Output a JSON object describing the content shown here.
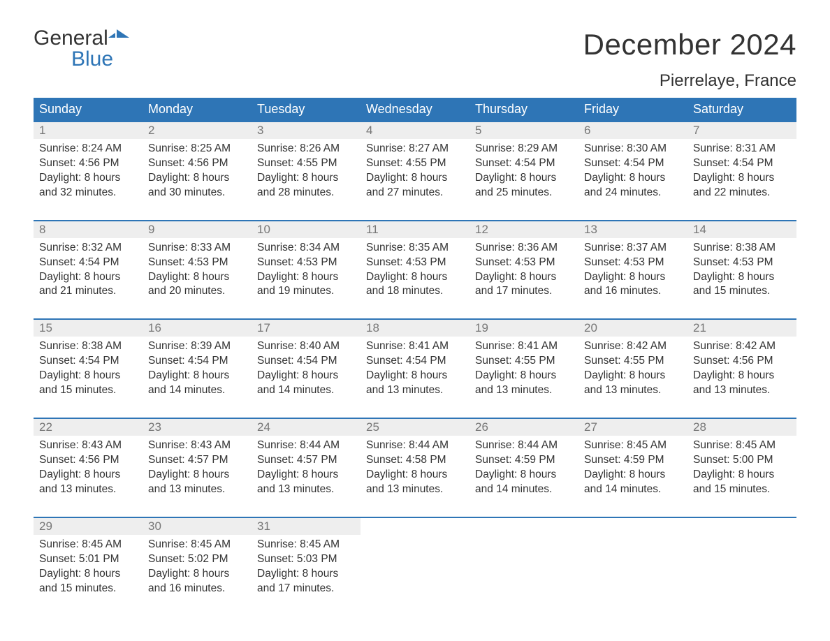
{
  "logo": {
    "line1": "General",
    "line2": "Blue"
  },
  "title": "December 2024",
  "location": "Pierrelaye, France",
  "colors": {
    "header_bg": "#2e75b6",
    "header_text": "#ffffff",
    "daynum_bg": "#eeeeee",
    "daynum_text": "#777777",
    "border": "#2e75b6",
    "body_text": "#333333",
    "page_bg": "#ffffff"
  },
  "fonts": {
    "title_size_pt": 32,
    "location_size_pt": 18,
    "weekday_size_pt": 14,
    "daynum_size_pt": 13,
    "detail_size_pt": 12,
    "family": "Arial"
  },
  "layout": {
    "columns": 7,
    "weeks": 5
  },
  "weekdays": [
    "Sunday",
    "Monday",
    "Tuesday",
    "Wednesday",
    "Thursday",
    "Friday",
    "Saturday"
  ],
  "labels": {
    "sunrise": "Sunrise:",
    "sunset": "Sunset:",
    "daylight_prefix": "Daylight:"
  },
  "days": [
    {
      "n": 1,
      "sunrise": "8:24 AM",
      "sunset": "4:56 PM",
      "dl": "8 hours and 32 minutes."
    },
    {
      "n": 2,
      "sunrise": "8:25 AM",
      "sunset": "4:56 PM",
      "dl": "8 hours and 30 minutes."
    },
    {
      "n": 3,
      "sunrise": "8:26 AM",
      "sunset": "4:55 PM",
      "dl": "8 hours and 28 minutes."
    },
    {
      "n": 4,
      "sunrise": "8:27 AM",
      "sunset": "4:55 PM",
      "dl": "8 hours and 27 minutes."
    },
    {
      "n": 5,
      "sunrise": "8:29 AM",
      "sunset": "4:54 PM",
      "dl": "8 hours and 25 minutes."
    },
    {
      "n": 6,
      "sunrise": "8:30 AM",
      "sunset": "4:54 PM",
      "dl": "8 hours and 24 minutes."
    },
    {
      "n": 7,
      "sunrise": "8:31 AM",
      "sunset": "4:54 PM",
      "dl": "8 hours and 22 minutes."
    },
    {
      "n": 8,
      "sunrise": "8:32 AM",
      "sunset": "4:54 PM",
      "dl": "8 hours and 21 minutes."
    },
    {
      "n": 9,
      "sunrise": "8:33 AM",
      "sunset": "4:53 PM",
      "dl": "8 hours and 20 minutes."
    },
    {
      "n": 10,
      "sunrise": "8:34 AM",
      "sunset": "4:53 PM",
      "dl": "8 hours and 19 minutes."
    },
    {
      "n": 11,
      "sunrise": "8:35 AM",
      "sunset": "4:53 PM",
      "dl": "8 hours and 18 minutes."
    },
    {
      "n": 12,
      "sunrise": "8:36 AM",
      "sunset": "4:53 PM",
      "dl": "8 hours and 17 minutes."
    },
    {
      "n": 13,
      "sunrise": "8:37 AM",
      "sunset": "4:53 PM",
      "dl": "8 hours and 16 minutes."
    },
    {
      "n": 14,
      "sunrise": "8:38 AM",
      "sunset": "4:53 PM",
      "dl": "8 hours and 15 minutes."
    },
    {
      "n": 15,
      "sunrise": "8:38 AM",
      "sunset": "4:54 PM",
      "dl": "8 hours and 15 minutes."
    },
    {
      "n": 16,
      "sunrise": "8:39 AM",
      "sunset": "4:54 PM",
      "dl": "8 hours and 14 minutes."
    },
    {
      "n": 17,
      "sunrise": "8:40 AM",
      "sunset": "4:54 PM",
      "dl": "8 hours and 14 minutes."
    },
    {
      "n": 18,
      "sunrise": "8:41 AM",
      "sunset": "4:54 PM",
      "dl": "8 hours and 13 minutes."
    },
    {
      "n": 19,
      "sunrise": "8:41 AM",
      "sunset": "4:55 PM",
      "dl": "8 hours and 13 minutes."
    },
    {
      "n": 20,
      "sunrise": "8:42 AM",
      "sunset": "4:55 PM",
      "dl": "8 hours and 13 minutes."
    },
    {
      "n": 21,
      "sunrise": "8:42 AM",
      "sunset": "4:56 PM",
      "dl": "8 hours and 13 minutes."
    },
    {
      "n": 22,
      "sunrise": "8:43 AM",
      "sunset": "4:56 PM",
      "dl": "8 hours and 13 minutes."
    },
    {
      "n": 23,
      "sunrise": "8:43 AM",
      "sunset": "4:57 PM",
      "dl": "8 hours and 13 minutes."
    },
    {
      "n": 24,
      "sunrise": "8:44 AM",
      "sunset": "4:57 PM",
      "dl": "8 hours and 13 minutes."
    },
    {
      "n": 25,
      "sunrise": "8:44 AM",
      "sunset": "4:58 PM",
      "dl": "8 hours and 13 minutes."
    },
    {
      "n": 26,
      "sunrise": "8:44 AM",
      "sunset": "4:59 PM",
      "dl": "8 hours and 14 minutes."
    },
    {
      "n": 27,
      "sunrise": "8:45 AM",
      "sunset": "4:59 PM",
      "dl": "8 hours and 14 minutes."
    },
    {
      "n": 28,
      "sunrise": "8:45 AM",
      "sunset": "5:00 PM",
      "dl": "8 hours and 15 minutes."
    },
    {
      "n": 29,
      "sunrise": "8:45 AM",
      "sunset": "5:01 PM",
      "dl": "8 hours and 15 minutes."
    },
    {
      "n": 30,
      "sunrise": "8:45 AM",
      "sunset": "5:02 PM",
      "dl": "8 hours and 16 minutes."
    },
    {
      "n": 31,
      "sunrise": "8:45 AM",
      "sunset": "5:03 PM",
      "dl": "8 hours and 17 minutes."
    }
  ]
}
